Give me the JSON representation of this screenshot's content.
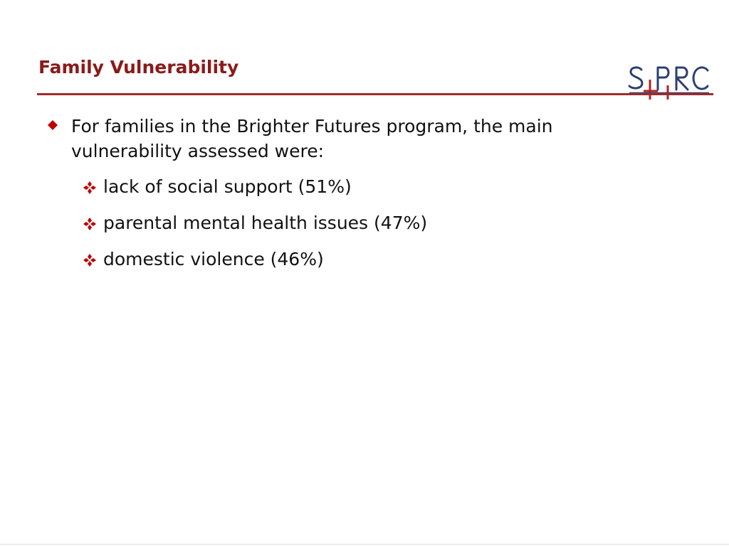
{
  "slide": {
    "title": "Family Vulnerability",
    "logo_text": "SPRC",
    "colors": {
      "title": "#8b1a1a",
      "rule": "#a32a2a",
      "bullet": "#c00000",
      "logo": "#2b3f73"
    },
    "main_bullet": {
      "icon": "diamond-bullet-icon",
      "text": "For families in the Brighter Futures program, the main vulnerability assessed were:"
    },
    "sub_bullets": [
      {
        "icon": "four-diamond-bullet-icon",
        "text": "lack of social support (51%)"
      },
      {
        "icon": "four-diamond-bullet-icon",
        "text": "parental mental health issues (47%)"
      },
      {
        "icon": "four-diamond-bullet-icon",
        "text": "domestic violence (46%)"
      }
    ]
  }
}
